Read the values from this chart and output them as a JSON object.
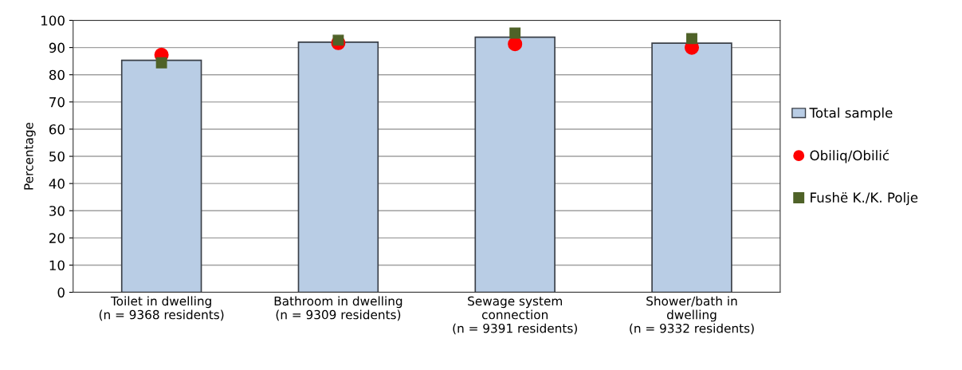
{
  "chart_data": {
    "type": "bar",
    "ylabel": "Percentage",
    "categories": [
      "Toilet in dwelling\n(n = 9368 residents)",
      "Bathroom in dwelling\n(n = 9309 residents)",
      "Sewage system\nconnection\n(n = 9391 residents)",
      "Shower/bath in\ndwelling\n(n = 9332 residents)"
    ],
    "series": [
      {
        "name": "Total sample",
        "color": "#b9cde5",
        "values": [
          85.3,
          92.0,
          93.8,
          91.6
        ]
      },
      {
        "name": "Obiliq/Obilić",
        "type": "scatter",
        "marker": "circle",
        "color": "#ff0000",
        "values": [
          87.3,
          91.7,
          91.3,
          90.0
        ]
      },
      {
        "name": "Fushë K./K. Polje",
        "type": "scatter",
        "marker": "square",
        "color": "#4f6228",
        "values": [
          84.4,
          92.7,
          95.3,
          93.3
        ]
      }
    ],
    "ylim": [
      0,
      100
    ],
    "yticks": [
      0,
      10,
      20,
      30,
      40,
      50,
      60,
      70,
      80,
      90,
      100
    ],
    "grid": "y",
    "legend": "right"
  }
}
